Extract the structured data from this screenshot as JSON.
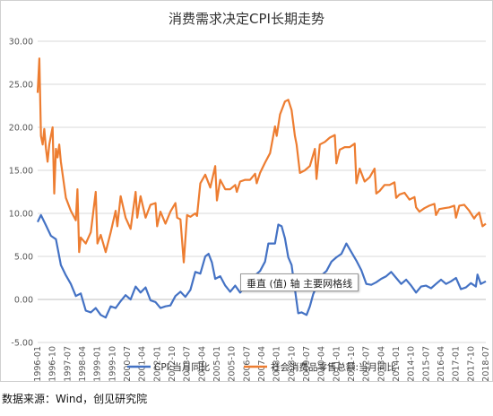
{
  "source_note": "数据来源：Wind，创见研究院",
  "tooltip_text": "垂直 (值) 轴 主要网格线",
  "colors": {
    "cpi": "#4472c4",
    "retail": "#ed7d31",
    "grid": "#d9d9d9",
    "axis": "#bfbfbf",
    "border": "#d0d0d0"
  },
  "chart_data": {
    "type": "line",
    "title": "消费需求决定CPI长期走势",
    "xlabel": "",
    "ylabel": "",
    "ylim": [
      -5,
      30
    ],
    "yticks": [
      "-5.00",
      "0.00",
      "5.00",
      "10.00",
      "15.00",
      "20.00",
      "25.00",
      "30.00"
    ],
    "ytick_values": [
      -5,
      0,
      5,
      10,
      15,
      20,
      25,
      30
    ],
    "grid": true,
    "legend_position": "bottom",
    "x_range": [
      "1996-01",
      "2018-07"
    ],
    "xticks": [
      "1996-01",
      "1996-10",
      "1997-07",
      "1998-04",
      "1999-01",
      "1999-10",
      "2000-07",
      "2001-04",
      "2002-01",
      "2002-10",
      "2003-07",
      "2004-04",
      "2005-01",
      "2005-10",
      "2006-07",
      "2007-04",
      "2008-01",
      "2008-10",
      "2009-07",
      "2010-04",
      "2011-01",
      "2011-10",
      "2012-07",
      "2013-04",
      "2014-01",
      "2014-10",
      "2015-07",
      "2016-04",
      "2017-01",
      "2017-10",
      "2018-07"
    ],
    "series": [
      {
        "name": "CPI:当月同比",
        "x": [
          "1996-01",
          "1996-03",
          "1996-06",
          "1996-09",
          "1996-12",
          "1997-03",
          "1997-06",
          "1997-09",
          "1997-12",
          "1998-03",
          "1998-06",
          "1998-09",
          "1998-12",
          "1999-03",
          "1999-06",
          "1999-09",
          "1999-12",
          "2000-03",
          "2000-06",
          "2000-09",
          "2000-12",
          "2001-03",
          "2001-06",
          "2001-09",
          "2001-12",
          "2002-03",
          "2002-06",
          "2002-09",
          "2002-12",
          "2003-03",
          "2003-06",
          "2003-09",
          "2003-12",
          "2004-03",
          "2004-06",
          "2004-08",
          "2004-10",
          "2004-12",
          "2005-03",
          "2005-06",
          "2005-09",
          "2005-12",
          "2006-03",
          "2006-06",
          "2006-09",
          "2006-12",
          "2007-03",
          "2007-06",
          "2007-08",
          "2007-10",
          "2007-12",
          "2008-02",
          "2008-04",
          "2008-06",
          "2008-08",
          "2008-10",
          "2008-12",
          "2009-02",
          "2009-04",
          "2009-07",
          "2009-09",
          "2009-11",
          "2010-01",
          "2010-04",
          "2010-07",
          "2010-10",
          "2011-01",
          "2011-04",
          "2011-07",
          "2011-10",
          "2012-01",
          "2012-04",
          "2012-07",
          "2012-10",
          "2013-01",
          "2013-04",
          "2013-07",
          "2013-10",
          "2014-01",
          "2014-04",
          "2014-07",
          "2014-10",
          "2015-01",
          "2015-04",
          "2015-07",
          "2015-10",
          "2016-01",
          "2016-04",
          "2016-07",
          "2016-10",
          "2017-01",
          "2017-04",
          "2017-07",
          "2017-10",
          "2018-01",
          "2018-02",
          "2018-04",
          "2018-07"
        ],
        "values": [
          9.0,
          9.8,
          8.6,
          7.4,
          7.0,
          4.0,
          2.8,
          1.8,
          0.4,
          0.7,
          -1.3,
          -1.5,
          -1.0,
          -1.8,
          -2.1,
          -0.8,
          -1.0,
          -0.2,
          0.5,
          0.0,
          1.5,
          0.8,
          1.4,
          -0.1,
          -0.3,
          -1.0,
          -0.8,
          -0.7,
          0.4,
          0.9,
          0.3,
          1.1,
          3.2,
          3.0,
          5.0,
          5.3,
          4.3,
          2.4,
          2.7,
          1.6,
          0.9,
          1.6,
          0.8,
          1.5,
          1.5,
          2.8,
          3.3,
          4.4,
          6.5,
          6.5,
          6.5,
          8.7,
          8.5,
          7.1,
          4.9,
          4.0,
          1.2,
          -1.6,
          -1.5,
          -1.8,
          -0.8,
          0.6,
          1.5,
          2.8,
          3.3,
          4.4,
          4.9,
          5.3,
          6.5,
          5.5,
          4.5,
          3.4,
          1.8,
          1.7,
          2.0,
          2.4,
          2.7,
          3.2,
          2.5,
          1.8,
          2.3,
          1.6,
          0.8,
          1.5,
          1.6,
          1.3,
          1.8,
          2.3,
          1.8,
          2.1,
          2.5,
          1.2,
          1.4,
          1.9,
          1.5,
          2.9,
          1.8,
          2.1
        ]
      },
      {
        "name": "社会消费品零售总额:当月同比",
        "x": [
          "1996-01",
          "1996-02",
          "1996-03",
          "1996-04",
          "1996-05",
          "1996-06",
          "1996-07",
          "1996-08",
          "1996-09",
          "1996-10",
          "1996-11",
          "1996-12",
          "1997-01",
          "1997-02",
          "1997-03",
          "1997-06",
          "1997-09",
          "1997-12",
          "1998-01",
          "1998-02",
          "1998-03",
          "1998-06",
          "1998-09",
          "1998-12",
          "1999-01",
          "1999-03",
          "1999-06",
          "1999-09",
          "1999-12",
          "2000-01",
          "2000-03",
          "2000-06",
          "2000-09",
          "2000-12",
          "2001-01",
          "2001-03",
          "2001-06",
          "2001-09",
          "2001-12",
          "2002-01",
          "2002-03",
          "2002-06",
          "2002-09",
          "2002-12",
          "2003-01",
          "2003-03",
          "2003-05",
          "2003-07",
          "2003-09",
          "2003-12",
          "2004-01",
          "2004-03",
          "2004-06",
          "2004-09",
          "2004-12",
          "2005-01",
          "2005-03",
          "2005-06",
          "2005-09",
          "2005-12",
          "2006-01",
          "2006-03",
          "2006-06",
          "2006-09",
          "2006-12",
          "2007-01",
          "2007-03",
          "2007-06",
          "2007-09",
          "2007-12",
          "2008-01",
          "2008-03",
          "2008-06",
          "2008-08",
          "2008-10",
          "2008-12",
          "2009-01",
          "2009-03",
          "2009-06",
          "2009-09",
          "2009-12",
          "2010-01",
          "2010-03",
          "2010-06",
          "2010-09",
          "2010-12",
          "2011-01",
          "2011-03",
          "2011-06",
          "2011-09",
          "2011-12",
          "2012-01",
          "2012-03",
          "2012-06",
          "2012-09",
          "2012-12",
          "2013-01",
          "2013-03",
          "2013-06",
          "2013-09",
          "2013-12",
          "2014-01",
          "2014-03",
          "2014-06",
          "2014-09",
          "2014-12",
          "2015-01",
          "2015-03",
          "2015-06",
          "2015-09",
          "2015-12",
          "2016-01",
          "2016-03",
          "2016-06",
          "2016-09",
          "2016-12",
          "2017-01",
          "2017-03",
          "2017-06",
          "2017-09",
          "2017-12",
          "2018-01",
          "2018-03",
          "2018-05",
          "2018-07"
        ],
        "values": [
          24.0,
          28.0,
          19.0,
          18.0,
          19.8,
          17.5,
          16.0,
          18.0,
          19.0,
          20.0,
          12.3,
          17.5,
          16.5,
          18.0,
          16.0,
          11.8,
          10.3,
          9.2,
          12.8,
          5.5,
          7.2,
          6.5,
          7.8,
          12.5,
          6.5,
          7.5,
          5.5,
          7.8,
          10.3,
          8.5,
          12.0,
          9.5,
          8.2,
          12.5,
          9.5,
          12.0,
          9.5,
          11.0,
          11.2,
          8.5,
          10.2,
          8.8,
          10.2,
          11.2,
          9.5,
          9.3,
          4.3,
          9.8,
          9.6,
          10.0,
          9.7,
          13.5,
          14.5,
          13.0,
          15.5,
          11.5,
          13.9,
          12.8,
          12.8,
          13.3,
          12.5,
          13.7,
          13.9,
          13.9,
          14.6,
          13.5,
          14.7,
          15.9,
          17.0,
          20.1,
          19.0,
          21.5,
          23.0,
          23.2,
          22.0,
          19.0,
          18.0,
          14.7,
          15.0,
          15.5,
          17.5,
          14.0,
          18.0,
          18.3,
          18.8,
          19.1,
          15.8,
          17.4,
          17.7,
          17.7,
          18.1,
          13.5,
          15.2,
          13.7,
          14.2,
          15.2,
          12.3,
          12.6,
          13.3,
          13.3,
          13.6,
          11.8,
          12.2,
          12.4,
          11.6,
          11.9,
          10.7,
          10.2,
          10.6,
          10.9,
          11.1,
          9.8,
          10.5,
          10.6,
          10.7,
          10.9,
          9.5,
          10.9,
          11.0,
          10.3,
          9.4,
          9.7,
          10.1,
          8.5,
          8.8
        ]
      }
    ]
  }
}
